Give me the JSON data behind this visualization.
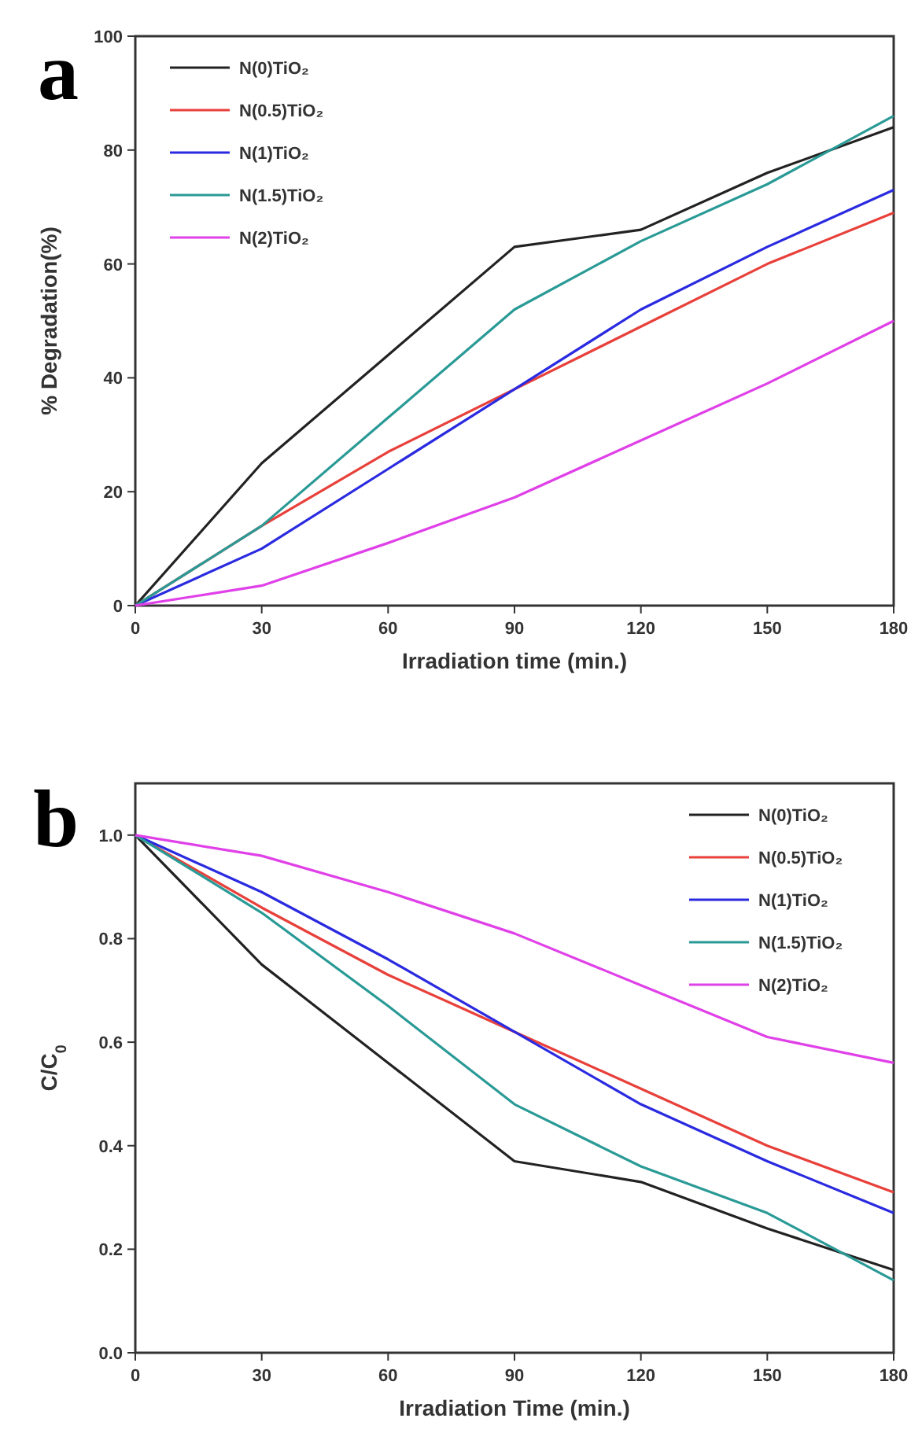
{
  "chart_data": [
    {
      "type": "line",
      "title": "a",
      "xlabel": "Irradiation time (min.)",
      "ylabel": "% Degradation(%)",
      "x": [
        0,
        30,
        60,
        90,
        120,
        150,
        180
      ],
      "xlim": [
        0,
        180
      ],
      "xticks": [
        0,
        30,
        60,
        90,
        120,
        150,
        180
      ],
      "ylim": [
        0,
        100
      ],
      "yticks": [
        0,
        20,
        40,
        60,
        80,
        100
      ],
      "legend": "top left",
      "marker": "none",
      "series": [
        {
          "name": "N(0)TiO₂",
          "color": "#222222",
          "values": [
            0,
            25,
            44,
            63,
            66,
            76,
            84
          ]
        },
        {
          "name": "N(0.5)TiO₂",
          "color": "#e8403a",
          "values": [
            0,
            14,
            27,
            38,
            49,
            60,
            69
          ]
        },
        {
          "name": "N(1)TiO₂",
          "color": "#2a2ae0",
          "values": [
            0,
            10,
            24,
            38,
            52,
            63,
            73
          ]
        },
        {
          "name": "N(1.5)TiO₂",
          "color": "#2a9a96",
          "values": [
            0,
            14,
            33,
            52,
            64,
            74,
            86
          ]
        },
        {
          "name": "N(2)TiO₂",
          "color": "#e040e8",
          "values": [
            0,
            3.5,
            11,
            19,
            29,
            39,
            50
          ]
        }
      ]
    },
    {
      "type": "line",
      "title": "b",
      "xlabel": "Irradiation Time (min.)",
      "ylabel": "C/C$_{0}$",
      "x": [
        0,
        30,
        60,
        90,
        120,
        150,
        180
      ],
      "xlim": [
        0,
        180
      ],
      "xticks": [
        0,
        30,
        60,
        90,
        120,
        150,
        180
      ],
      "ylim": [
        0,
        1.1
      ],
      "yticks": [
        {
          "value": 0,
          "label": "0.0"
        },
        {
          "value": 0.2,
          "label": "0.2"
        },
        {
          "value": 0.4,
          "label": "0.4"
        },
        {
          "value": 0.6,
          "label": "0.6"
        },
        {
          "value": 0.8,
          "label": "0.8"
        },
        {
          "value": 1,
          "label": "1.0"
        }
      ],
      "legend": "top right",
      "marker": "none",
      "series": [
        {
          "name": "N(0)TiO₂",
          "color": "#222222",
          "values": [
            1,
            0.75,
            0.56,
            0.37,
            0.33,
            0.24,
            0.16
          ]
        },
        {
          "name": "N(0.5)TiO₂",
          "color": "#e8403a",
          "values": [
            1,
            0.86,
            0.73,
            0.62,
            0.51,
            0.4,
            0.31
          ]
        },
        {
          "name": "N(1)TiO₂",
          "color": "#2a2ae0",
          "values": [
            1,
            0.89,
            0.76,
            0.62,
            0.48,
            0.37,
            0.27
          ]
        },
        {
          "name": "N(1.5)TiO₂",
          "color": "#2a9a96",
          "values": [
            1,
            0.85,
            0.67,
            0.48,
            0.36,
            0.27,
            0.14
          ]
        },
        {
          "name": "N(2)TiO₂",
          "color": "#e040e8",
          "values": [
            1,
            0.96,
            0.89,
            0.81,
            0.71,
            0.61,
            0.56
          ]
        }
      ]
    }
  ]
}
